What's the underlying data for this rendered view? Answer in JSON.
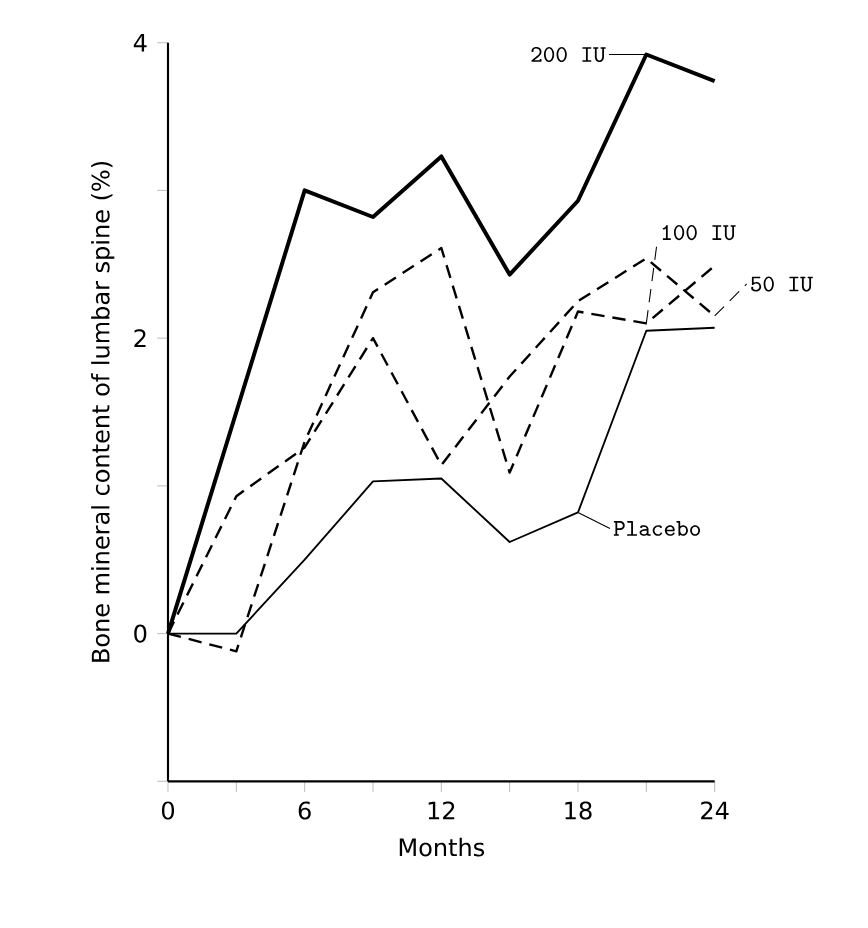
{
  "chart_data": {
    "type": "line",
    "xlabel": "Months",
    "ylabel": "Bone mineral content of lumbar spine (%)",
    "x": [
      0,
      3,
      6,
      9,
      12,
      15,
      18,
      21,
      24
    ],
    "series": [
      {
        "name": "200 IU",
        "color": "#000000",
        "line_style": "solid",
        "values": [
          0,
          1.5,
          3.0,
          2.82,
          3.23,
          2.43,
          2.93,
          3.92,
          3.74
        ]
      },
      {
        "name": "100 IU",
        "color": "#000000",
        "line_style": "dashed",
        "values": [
          0,
          -0.12,
          1.3,
          2.31,
          2.61,
          1.09,
          2.18,
          2.1,
          2.49
        ]
      },
      {
        "name": "50 IU",
        "color": "#000000",
        "line_style": "dashed",
        "values": [
          0,
          0.93,
          1.26,
          2.0,
          1.14,
          1.74,
          2.25,
          2.54,
          2.15
        ]
      },
      {
        "name": "Placebo",
        "color": "#000000",
        "line_style": "solid",
        "values": [
          0,
          0,
          0.5,
          1.03,
          1.05,
          0.62,
          0.82,
          2.05,
          2.07
        ]
      }
    ],
    "xlim": [
      0,
      24
    ],
    "ylim": [
      -1,
      4
    ],
    "xticks": [
      0,
      {
        "value": 3,
        "label": null
      },
      6,
      {
        "value": 9,
        "label": null
      },
      12,
      {
        "value": 15,
        "label": null
      },
      18,
      {
        "value": 21,
        "label": null
      },
      24
    ],
    "yticks": [
      {
        "value": -1,
        "label": null
      },
      0,
      {
        "value": 1,
        "label": null
      },
      2,
      {
        "value": 3,
        "label": null
      },
      4
    ],
    "grid": false,
    "legend": "right",
    "marker": "none"
  }
}
